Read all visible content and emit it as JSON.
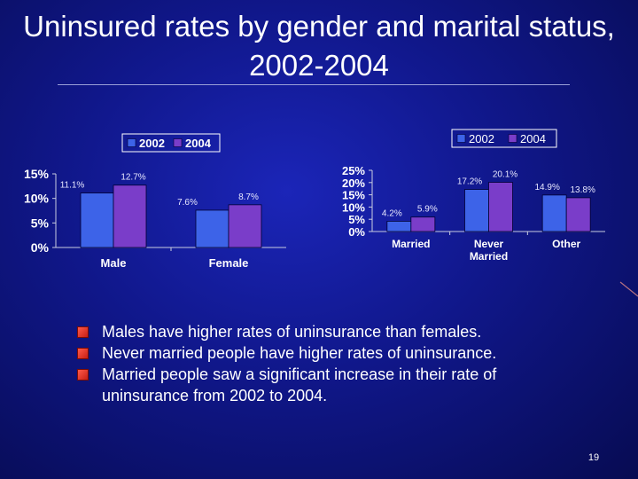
{
  "slide": {
    "title": "Uninsured rates by gender and marital status, 2002-2004",
    "page_number": "19",
    "bullets": [
      "Males have higher rates of uninsurance than females.",
      "Never married people have higher rates of uninsurance.",
      "Married people saw a significant increase in their rate of uninsurance from 2002 to 2004."
    ]
  },
  "colors": {
    "series_2002": "#3d63e8",
    "series_2004": "#7a3dc9",
    "axis": "#c8cce0",
    "text": "#ffffff",
    "label": "#e8e8ff"
  },
  "chart_data": [
    {
      "type": "bar",
      "title": "",
      "categories": [
        "Male",
        "Female"
      ],
      "series": [
        {
          "name": "2002",
          "values": [
            11.1,
            7.6
          ],
          "labels": [
            "11.1%",
            "7.6%"
          ]
        },
        {
          "name": "2004",
          "values": [
            12.7,
            8.7
          ],
          "labels": [
            "12.7%",
            "8.7%"
          ]
        }
      ],
      "yticks": [
        "0%",
        "5%",
        "10%",
        "15%"
      ],
      "ylim": [
        0,
        15
      ],
      "legend": "top-left",
      "xlabel": "",
      "ylabel": ""
    },
    {
      "type": "bar",
      "title": "",
      "categories": [
        "Married",
        "Never Married",
        "Other"
      ],
      "series": [
        {
          "name": "2002",
          "values": [
            4.2,
            17.2,
            14.9
          ],
          "labels": [
            "4.2%",
            "17.2%",
            "14.9%"
          ]
        },
        {
          "name": "2004",
          "values": [
            5.9,
            20.1,
            13.8
          ],
          "labels": [
            "5.9%",
            "20.1%",
            "13.8%"
          ]
        }
      ],
      "yticks": [
        "0%",
        "5%",
        "10%",
        "15%",
        "20%",
        "25%"
      ],
      "ylim": [
        0,
        25
      ],
      "legend": "top-right",
      "xlabel": "",
      "ylabel": ""
    }
  ]
}
